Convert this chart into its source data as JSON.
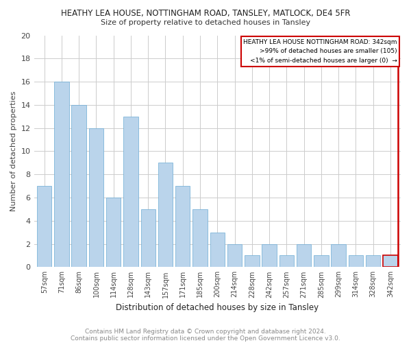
{
  "title": "HEATHY LEA HOUSE, NOTTINGHAM ROAD, TANSLEY, MATLOCK, DE4 5FR",
  "subtitle": "Size of property relative to detached houses in Tansley",
  "xlabel": "Distribution of detached houses by size in Tansley",
  "ylabel": "Number of detached properties",
  "categories": [
    "57sqm",
    "71sqm",
    "86sqm",
    "100sqm",
    "114sqm",
    "128sqm",
    "143sqm",
    "157sqm",
    "171sqm",
    "185sqm",
    "200sqm",
    "214sqm",
    "228sqm",
    "242sqm",
    "257sqm",
    "271sqm",
    "285sqm",
    "299sqm",
    "314sqm",
    "328sqm",
    "342sqm"
  ],
  "values": [
    7,
    16,
    14,
    12,
    6,
    13,
    5,
    9,
    7,
    5,
    3,
    2,
    1,
    2,
    1,
    2,
    1,
    2,
    1,
    1,
    1
  ],
  "highlight_index": 20,
  "bar_color": "#bad4eb",
  "bar_edge_color": "#6aaad4",
  "highlight_bar_color": "#bad4eb",
  "highlight_bar_edge_color": "#cc0000",
  "red_line_color": "#cc0000",
  "ylim": [
    0,
    20
  ],
  "yticks": [
    0,
    2,
    4,
    6,
    8,
    10,
    12,
    14,
    16,
    18,
    20
  ],
  "legend_text1": "HEATHY LEA HOUSE NOTTINGHAM ROAD: 342sqm",
  "legend_text2": ">99% of detached houses are smaller (105)",
  "legend_text3": "<1% of semi-detached houses are larger (0)  →",
  "legend_box_color": "#ffffff",
  "legend_box_edge_color": "#cc0000",
  "footer1": "Contains HM Land Registry data © Crown copyright and database right 2024.",
  "footer2": "Contains public sector information licensed under the Open Government Licence v3.0.",
  "background_color": "#ffffff",
  "grid_color": "#cccccc"
}
